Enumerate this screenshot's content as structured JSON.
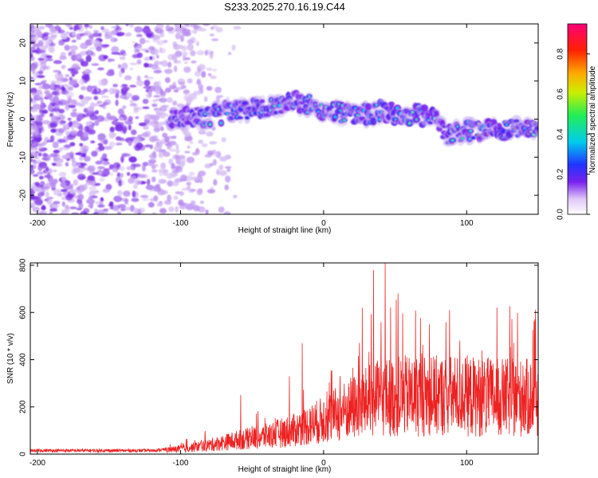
{
  "title": "S233.2025.270.16.19.C44",
  "chart_data": [
    {
      "type": "heatmap",
      "name": "spectrogram",
      "xlabel": "Height of straight line (km)",
      "ylabel": "Frequency (Hz)",
      "xlim": [
        -205,
        150
      ],
      "ylim": [
        -25,
        25
      ],
      "xticks": [
        -200,
        -100,
        0,
        100
      ],
      "yticks": [
        -20,
        -10,
        0,
        10,
        20
      ],
      "colorbar": {
        "label": "Normalized spectral amplitude",
        "range": [
          0,
          0.95
        ],
        "ticks": [
          0.0,
          0.2,
          0.4,
          0.6,
          0.8
        ],
        "tick_labels": [
          "0.0",
          "0.2",
          "0.4",
          "0.6",
          "0.8"
        ]
      },
      "ridge_trend": {
        "x": [
          -100,
          -80,
          -60,
          -40,
          -20,
          0,
          20,
          40,
          60,
          80,
          85,
          100,
          120,
          140,
          150
        ],
        "y": [
          0,
          1,
          2,
          3,
          5,
          2,
          1,
          2,
          1,
          1,
          -4,
          -3,
          -3,
          -3,
          -2.5
        ]
      },
      "noise_region": [
        -205,
        -100
      ]
    },
    {
      "type": "line",
      "name": "snr",
      "xlabel": "Height of straight line (km)",
      "ylabel": "SNR (10 * v/v)",
      "xlim": [
        -205,
        150
      ],
      "ylim": [
        0,
        810
      ],
      "xticks": [
        -200,
        -100,
        0,
        100
      ],
      "yticks": [
        0,
        200,
        400,
        600,
        800
      ],
      "color": "#ee2222",
      "envelope": {
        "x": [
          -205,
          -120,
          -100,
          -80,
          -60,
          -40,
          -20,
          0,
          20,
          40,
          60,
          80,
          100,
          120,
          150
        ],
        "y": [
          15,
          15,
          25,
          45,
          70,
          90,
          120,
          170,
          230,
          280,
          290,
          290,
          290,
          280,
          280
        ]
      },
      "peaks": [
        {
          "x": 43,
          "y": 810
        },
        {
          "x": 35,
          "y": 780
        },
        {
          "x": 52,
          "y": 680
        },
        {
          "x": 27,
          "y": 620
        },
        {
          "x": -15,
          "y": 470
        },
        {
          "x": -24,
          "y": 330
        },
        {
          "x": -58,
          "y": 250
        },
        {
          "x": 88,
          "y": 610
        },
        {
          "x": 148,
          "y": 490
        }
      ]
    }
  ]
}
